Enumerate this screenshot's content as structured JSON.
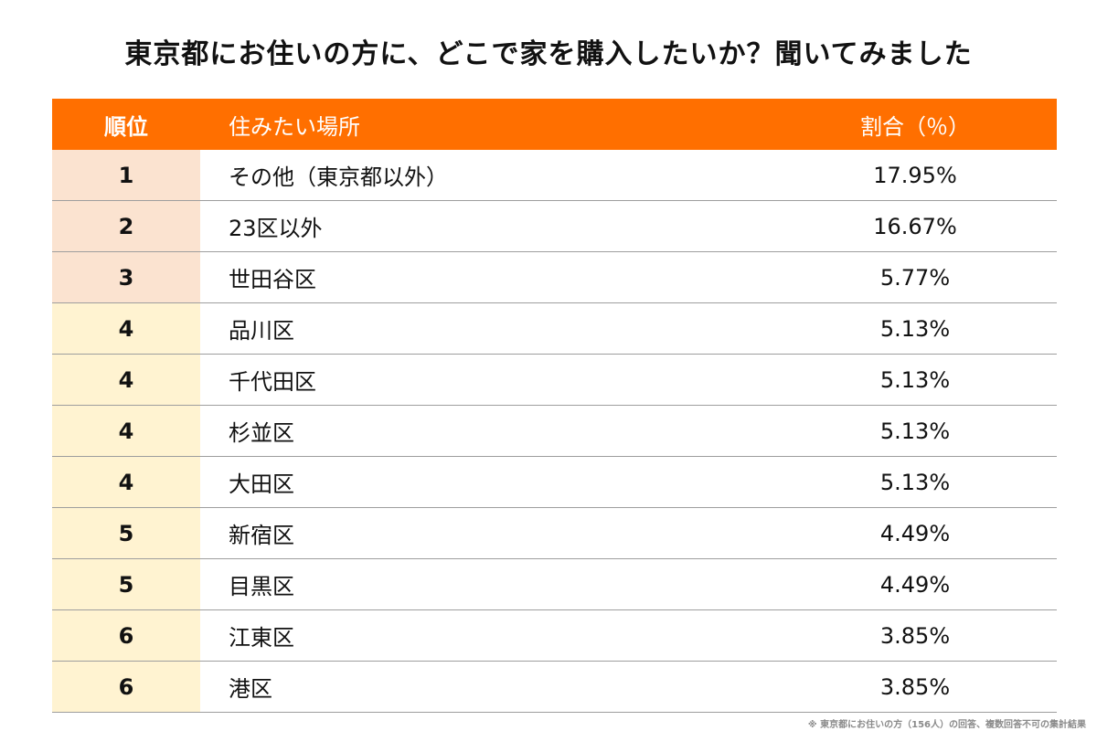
{
  "title": "東京都にお住いの方に、どこで家を購入したいか？聞いてみました",
  "headers": {
    "rank": "順位",
    "place": "住みたい場所",
    "percent": "割合（％）"
  },
  "chart_data": {
    "type": "table",
    "columns": [
      "順位",
      "住みたい場所",
      "割合（％）"
    ],
    "rows": [
      {
        "rank": "1",
        "place": "その他（東京都以外）",
        "percent": "17.95%",
        "value": 17.95
      },
      {
        "rank": "2",
        "place": "23区以外",
        "percent": "16.67%",
        "value": 16.67
      },
      {
        "rank": "3",
        "place": "世田谷区",
        "percent": "5.77%",
        "value": 5.77
      },
      {
        "rank": "4",
        "place": "品川区",
        "percent": "5.13%",
        "value": 5.13
      },
      {
        "rank": "4",
        "place": "千代田区",
        "percent": "5.13%",
        "value": 5.13
      },
      {
        "rank": "4",
        "place": "杉並区",
        "percent": "5.13%",
        "value": 5.13
      },
      {
        "rank": "4",
        "place": "大田区",
        "percent": "5.13%",
        "value": 5.13
      },
      {
        "rank": "5",
        "place": "新宿区",
        "percent": "4.49%",
        "value": 4.49
      },
      {
        "rank": "5",
        "place": "目黒区",
        "percent": "4.49%",
        "value": 4.49
      },
      {
        "rank": "6",
        "place": "江東区",
        "percent": "3.85%",
        "value": 3.85
      },
      {
        "rank": "6",
        "place": "港区",
        "percent": "3.85%",
        "value": 3.85
      }
    ]
  },
  "footnote": "※ 東京都にお住いの方（156人）の回答、複数回答不可の集計結果",
  "colors": {
    "header_bg": "#ff6f00",
    "rank_top3_bg": "#fbe3d0",
    "rank_other_bg": "#fff3d1"
  }
}
